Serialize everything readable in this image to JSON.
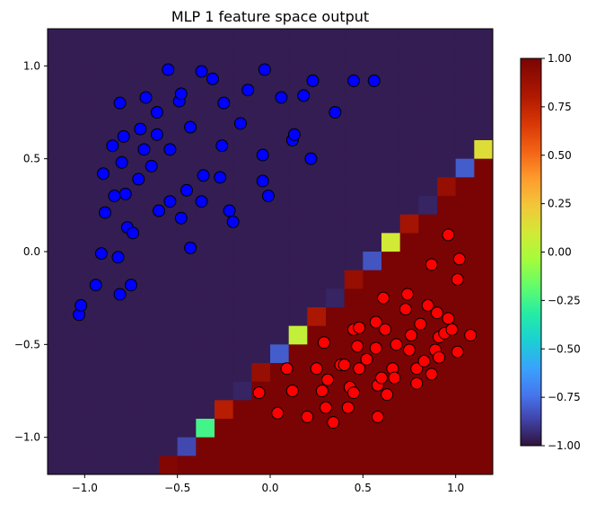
{
  "chart_data": {
    "type": "heatmap",
    "title": "MLP 1 feature space output",
    "xlabel": "",
    "ylabel": "",
    "xlim": [
      -1.2,
      1.2
    ],
    "ylim": [
      -1.2,
      1.2
    ],
    "xticks": [
      -1.0,
      -0.5,
      0.0,
      0.5,
      1.0
    ],
    "xtick_labels": [
      "−1.0",
      "−0.5",
      "0.0",
      "0.5",
      "1.0"
    ],
    "yticks": [
      -1.0,
      -0.5,
      0.0,
      0.5,
      1.0
    ],
    "ytick_labels": [
      "−1.0",
      "−0.5",
      "0.0",
      "0.5",
      "1.0"
    ],
    "grid": false,
    "colormap": "turbo",
    "grid_cells": 24,
    "background_value": -0.97,
    "boundary_cells": [
      {
        "col": 6,
        "row": 23,
        "v": 0.97
      },
      {
        "col": 7,
        "row": 22,
        "v": -0.85
      },
      {
        "col": 8,
        "row": 21,
        "v": -0.25
      },
      {
        "col": 9,
        "row": 20,
        "v": 0.78
      },
      {
        "col": 10,
        "row": 19,
        "v": -0.95
      },
      {
        "col": 11,
        "row": 18,
        "v": 0.9
      },
      {
        "col": 12,
        "row": 17,
        "v": -0.8
      },
      {
        "col": 13,
        "row": 16,
        "v": 0.05
      },
      {
        "col": 14,
        "row": 15,
        "v": 0.82
      },
      {
        "col": 15,
        "row": 14,
        "v": -0.95
      },
      {
        "col": 16,
        "row": 13,
        "v": 0.9
      },
      {
        "col": 17,
        "row": 12,
        "v": -0.82
      },
      {
        "col": 18,
        "row": 11,
        "v": 0.1
      },
      {
        "col": 19,
        "row": 10,
        "v": 0.85
      },
      {
        "col": 20,
        "row": 9,
        "v": -0.95
      },
      {
        "col": 21,
        "row": 8,
        "v": 0.9
      },
      {
        "col": 22,
        "row": 7,
        "v": -0.8
      },
      {
        "col": 23,
        "row": 6,
        "v": 0.15
      },
      {
        "col": 24,
        "row": 5,
        "v": 0.85
      },
      {
        "col": 25,
        "row": 4,
        "v": -0.95
      },
      {
        "col": 26,
        "row": 3,
        "v": 0.9
      },
      {
        "col": 27,
        "row": 2,
        "v": -0.75
      }
    ],
    "colorbar": {
      "range": [
        -1.0,
        1.0
      ],
      "ticks": [
        -1.0,
        -0.75,
        -0.5,
        -0.25,
        0.0,
        0.25,
        0.5,
        0.75,
        1.0
      ],
      "tick_labels": [
        "−1.00",
        "−0.75",
        "−0.50",
        "−0.25",
        "0.00",
        "0.25",
        "0.50",
        "0.75",
        "1.00"
      ]
    },
    "series": [
      {
        "color": "#0000ff",
        "points": [
          [
            -1.03,
            -0.34
          ],
          [
            -1.02,
            -0.29
          ],
          [
            -0.94,
            -0.18
          ],
          [
            -0.91,
            -0.01
          ],
          [
            -0.9,
            0.42
          ],
          [
            -0.89,
            0.21
          ],
          [
            -0.85,
            0.57
          ],
          [
            -0.84,
            0.3
          ],
          [
            -0.82,
            -0.03
          ],
          [
            -0.81,
            0.8
          ],
          [
            -0.81,
            -0.23
          ],
          [
            -0.8,
            0.48
          ],
          [
            -0.79,
            0.62
          ],
          [
            -0.78,
            0.31
          ],
          [
            -0.77,
            0.13
          ],
          [
            -0.75,
            -0.18
          ],
          [
            -0.74,
            0.1
          ],
          [
            -0.71,
            0.39
          ],
          [
            -0.7,
            0.66
          ],
          [
            -0.68,
            0.55
          ],
          [
            -0.67,
            0.83
          ],
          [
            -0.64,
            0.46
          ],
          [
            -0.61,
            0.63
          ],
          [
            -0.61,
            0.75
          ],
          [
            -0.6,
            0.22
          ],
          [
            -0.55,
            0.98
          ],
          [
            -0.54,
            0.55
          ],
          [
            -0.54,
            0.27
          ],
          [
            -0.49,
            0.81
          ],
          [
            -0.48,
            0.85
          ],
          [
            -0.48,
            0.18
          ],
          [
            -0.45,
            0.33
          ],
          [
            -0.43,
            0.67
          ],
          [
            -0.43,
            0.02
          ],
          [
            -0.37,
            0.97
          ],
          [
            -0.36,
            0.41
          ],
          [
            -0.37,
            0.27
          ],
          [
            -0.31,
            0.93
          ],
          [
            -0.27,
            0.4
          ],
          [
            -0.26,
            0.57
          ],
          [
            -0.25,
            0.8
          ],
          [
            -0.22,
            0.22
          ],
          [
            -0.2,
            0.16
          ],
          [
            -0.16,
            0.69
          ],
          [
            -0.12,
            0.87
          ],
          [
            -0.04,
            0.52
          ],
          [
            -0.03,
            0.98
          ],
          [
            -0.04,
            0.38
          ],
          [
            -0.01,
            0.3
          ],
          [
            0.06,
            0.83
          ],
          [
            0.12,
            0.6
          ],
          [
            0.13,
            0.63
          ],
          [
            0.18,
            0.84
          ],
          [
            0.22,
            0.5
          ],
          [
            0.23,
            0.92
          ],
          [
            0.35,
            0.75
          ],
          [
            0.45,
            0.92
          ],
          [
            0.56,
            0.92
          ]
        ]
      },
      {
        "color": "#ff0000",
        "points": [
          [
            -0.06,
            -0.76
          ],
          [
            0.04,
            -0.87
          ],
          [
            0.09,
            -0.63
          ],
          [
            0.12,
            -0.75
          ],
          [
            0.2,
            -0.89
          ],
          [
            0.25,
            -0.63
          ],
          [
            0.28,
            -0.75
          ],
          [
            0.29,
            -0.49
          ],
          [
            0.3,
            -0.84
          ],
          [
            0.31,
            -0.69
          ],
          [
            0.34,
            -0.92
          ],
          [
            0.38,
            -0.61
          ],
          [
            0.4,
            -0.61
          ],
          [
            0.42,
            -0.84
          ],
          [
            0.43,
            -0.73
          ],
          [
            0.45,
            -0.42
          ],
          [
            0.45,
            -0.76
          ],
          [
            0.47,
            -0.51
          ],
          [
            0.48,
            -0.41
          ],
          [
            0.48,
            -0.63
          ],
          [
            0.52,
            -0.58
          ],
          [
            0.57,
            -0.52
          ],
          [
            0.57,
            -0.38
          ],
          [
            0.58,
            -0.72
          ],
          [
            0.58,
            -0.89
          ],
          [
            0.6,
            -0.68
          ],
          [
            0.61,
            -0.25
          ],
          [
            0.62,
            -0.42
          ],
          [
            0.63,
            -0.77
          ],
          [
            0.66,
            -0.63
          ],
          [
            0.67,
            -0.68
          ],
          [
            0.68,
            -0.5
          ],
          [
            0.73,
            -0.31
          ],
          [
            0.74,
            -0.23
          ],
          [
            0.75,
            -0.53
          ],
          [
            0.76,
            -0.45
          ],
          [
            0.79,
            -0.63
          ],
          [
            0.79,
            -0.71
          ],
          [
            0.81,
            -0.39
          ],
          [
            0.83,
            -0.59
          ],
          [
            0.85,
            -0.29
          ],
          [
            0.87,
            -0.07
          ],
          [
            0.87,
            -0.66
          ],
          [
            0.89,
            -0.53
          ],
          [
            0.9,
            -0.33
          ],
          [
            0.91,
            -0.46
          ],
          [
            0.91,
            -0.57
          ],
          [
            0.94,
            -0.44
          ],
          [
            0.96,
            -0.36
          ],
          [
            0.96,
            0.09
          ],
          [
            0.98,
            -0.42
          ],
          [
            1.01,
            -0.54
          ],
          [
            1.01,
            -0.15
          ],
          [
            1.02,
            -0.04
          ],
          [
            1.08,
            -0.45
          ]
        ]
      }
    ]
  }
}
